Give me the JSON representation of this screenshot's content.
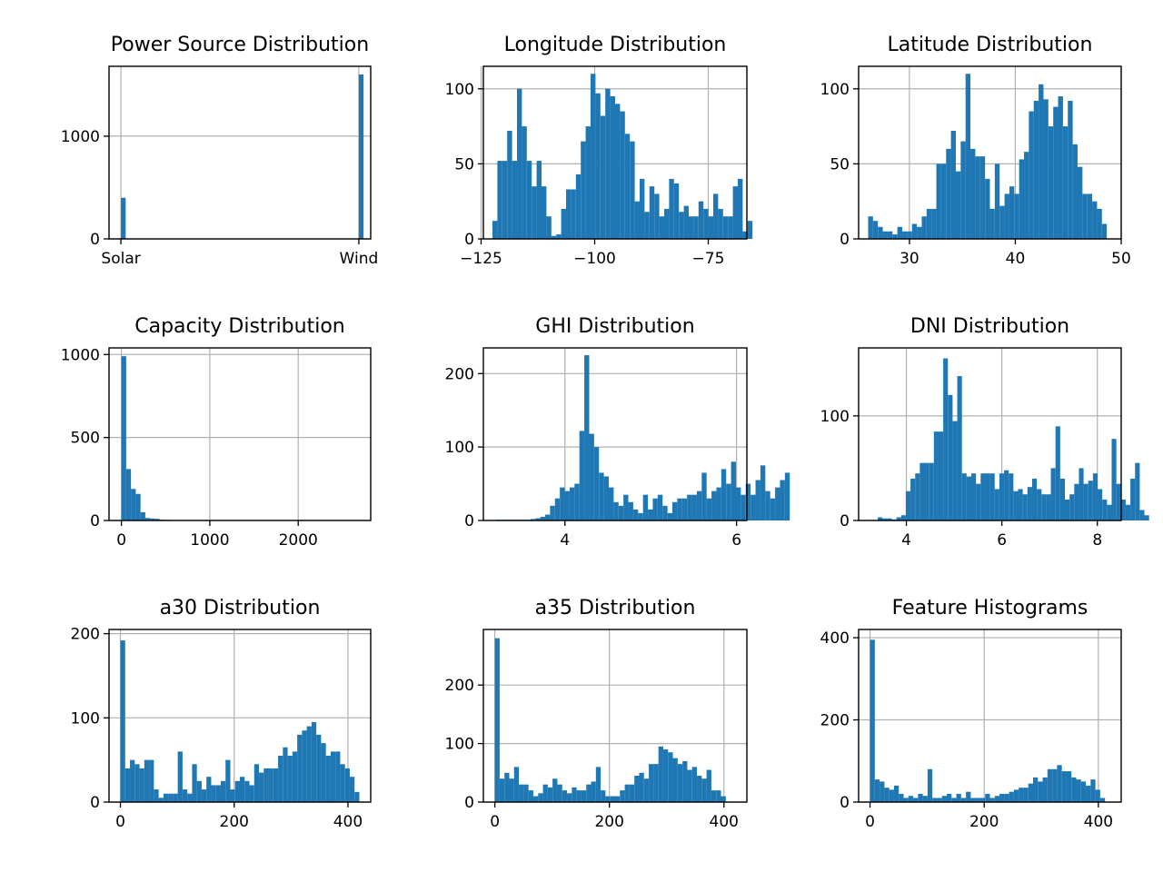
{
  "chart_data": [
    {
      "type": "bar",
      "title": "Power Source Distribution",
      "categories": [
        "Solar",
        "Wind"
      ],
      "values": [
        400,
        1600
      ],
      "xlim": [
        -0.05,
        1.05
      ],
      "ylim": [
        0,
        1680
      ],
      "xticks": [],
      "yticks": [
        0,
        1000
      ],
      "category_ticks": [
        {
          "value": 0,
          "label": "Solar"
        },
        {
          "value": 1,
          "label": "Wind"
        }
      ],
      "bin_width": 0.02,
      "color": "#1f77b4",
      "grid": true
    },
    {
      "type": "bar",
      "title": "Longitude Distribution",
      "bin_start": -122.5,
      "bin_width": 1.08,
      "values": [
        12,
        52,
        52,
        72,
        52,
        100,
        75,
        52,
        35,
        52,
        35,
        15,
        2,
        3,
        20,
        33,
        33,
        43,
        65,
        75,
        110,
        97,
        82,
        100,
        95,
        90,
        85,
        70,
        65,
        25,
        40,
        18,
        35,
        30,
        15,
        20,
        40,
        37,
        18,
        22,
        15,
        15,
        25,
        20,
        15,
        30,
        20,
        15,
        15,
        35,
        40,
        5,
        12
      ],
      "xlim": [
        -124.5,
        -66.5
      ],
      "ylim": [
        0,
        115
      ],
      "xticks": [
        -125,
        -100,
        -75
      ],
      "yticks": [
        0,
        50,
        100
      ],
      "color": "#1f77b4",
      "grid": true
    },
    {
      "type": "bar",
      "title": "Latitude Distribution",
      "bin_start": 26.1,
      "bin_width": 0.46,
      "values": [
        15,
        12,
        8,
        5,
        5,
        3,
        8,
        5,
        5,
        10,
        8,
        15,
        20,
        20,
        50,
        50,
        60,
        72,
        45,
        65,
        110,
        60,
        55,
        55,
        40,
        20,
        50,
        22,
        30,
        35,
        30,
        53,
        58,
        85,
        92,
        103,
        93,
        75,
        88,
        95,
        75,
        92,
        63,
        48,
        30,
        30,
        25,
        20,
        10
      ],
      "xlim": [
        25.2,
        50
      ],
      "ylim": [
        0,
        115
      ],
      "xticks": [
        30,
        40,
        50
      ],
      "yticks": [
        0,
        50,
        100
      ],
      "color": "#1f77b4",
      "grid": true
    },
    {
      "type": "bar",
      "title": "Capacity Distribution",
      "bin_start": 0,
      "bin_width": 54,
      "values": [
        990,
        310,
        190,
        160,
        50,
        15,
        12,
        10,
        5,
        4,
        3,
        2,
        2,
        2,
        1,
        1,
        1,
        1,
        1,
        1,
        1,
        0,
        0,
        1,
        0,
        0,
        0,
        0,
        0,
        1,
        0,
        0,
        0,
        0,
        0,
        0,
        0,
        0,
        0,
        0,
        0,
        0,
        0,
        0,
        0,
        0,
        0,
        0,
        0,
        1
      ],
      "xlim": [
        -140,
        2820
      ],
      "ylim": [
        0,
        1040
      ],
      "xticks": [
        0,
        1000,
        2000
      ],
      "yticks": [
        0,
        500,
        1000
      ],
      "color": "#1f77b4",
      "grid": true
    },
    {
      "type": "bar",
      "title": "GHI Distribution",
      "bin_start": 3.2,
      "bin_width": 0.057,
      "values": [
        1,
        1,
        1,
        1,
        1,
        1,
        1,
        2,
        3,
        5,
        8,
        20,
        30,
        45,
        40,
        45,
        50,
        122,
        225,
        118,
        100,
        65,
        60,
        45,
        25,
        20,
        35,
        25,
        15,
        10,
        35,
        15,
        30,
        35,
        20,
        10,
        25,
        30,
        30,
        35,
        35,
        40,
        65,
        30,
        40,
        45,
        70,
        50,
        80,
        45,
        35,
        50,
        35,
        55,
        75,
        40,
        30,
        45,
        55,
        65
      ],
      "xlim": [
        3.05,
        6.12
      ],
      "ylim": [
        0,
        235
      ],
      "xticks": [
        4,
        6
      ],
      "yticks": [
        0,
        100,
        200
      ],
      "color": "#1f77b4",
      "grid": true
    },
    {
      "type": "bar",
      "title": "DNI Distribution",
      "bin_start": 3.4,
      "bin_width": 0.098,
      "values": [
        3,
        2,
        2,
        1,
        3,
        5,
        28,
        40,
        45,
        55,
        55,
        55,
        85,
        85,
        155,
        120,
        95,
        138,
        45,
        42,
        45,
        35,
        45,
        45,
        45,
        30,
        45,
        48,
        45,
        28,
        30,
        25,
        32,
        40,
        30,
        25,
        25,
        50,
        90,
        40,
        20,
        25,
        35,
        50,
        35,
        38,
        45,
        30,
        20,
        15,
        78,
        35,
        20,
        15,
        40,
        55,
        10,
        5
      ],
      "xlim": [
        3.0,
        8.5
      ],
      "ylim": [
        0,
        165
      ],
      "xticks": [
        4,
        6,
        8
      ],
      "yticks": [
        0,
        100
      ],
      "color": "#1f77b4",
      "grid": true
    },
    {
      "type": "bar",
      "title": "a30 Distribution",
      "bin_start": 0,
      "bin_width": 8.4,
      "values": [
        192,
        40,
        50,
        45,
        40,
        50,
        50,
        15,
        5,
        10,
        10,
        10,
        60,
        15,
        10,
        45,
        25,
        15,
        30,
        20,
        20,
        25,
        50,
        15,
        25,
        30,
        25,
        20,
        45,
        35,
        40,
        40,
        40,
        55,
        65,
        55,
        60,
        80,
        85,
        90,
        95,
        80,
        70,
        55,
        60,
        60,
        45,
        40,
        30,
        12
      ],
      "xlim": [
        -20,
        440
      ],
      "ylim": [
        0,
        205
      ],
      "xticks": [
        0,
        200,
        400
      ],
      "yticks": [
        0,
        100,
        200
      ],
      "color": "#1f77b4",
      "grid": true
    },
    {
      "type": "bar",
      "title": "a35 Distribution",
      "bin_start": 0,
      "bin_width": 8.4,
      "values": [
        280,
        40,
        50,
        40,
        60,
        30,
        30,
        20,
        10,
        15,
        30,
        25,
        40,
        30,
        20,
        15,
        25,
        20,
        20,
        30,
        35,
        60,
        20,
        10,
        10,
        10,
        20,
        30,
        30,
        45,
        50,
        40,
        65,
        65,
        95,
        90,
        85,
        75,
        65,
        70,
        55,
        60,
        45,
        40,
        55,
        20,
        20,
        10
      ],
      "xlim": [
        -20,
        440
      ],
      "ylim": [
        0,
        295
      ],
      "xticks": [
        0,
        200,
        400
      ],
      "yticks": [
        0,
        100,
        200
      ],
      "color": "#1f77b4",
      "grid": true
    },
    {
      "type": "bar",
      "title": "Feature Histograms",
      "bin_start": 0,
      "bin_width": 8.4,
      "values": [
        395,
        55,
        50,
        35,
        30,
        40,
        20,
        10,
        15,
        10,
        20,
        15,
        80,
        10,
        10,
        15,
        20,
        10,
        20,
        10,
        25,
        10,
        10,
        10,
        20,
        10,
        15,
        20,
        20,
        25,
        30,
        35,
        35,
        45,
        60,
        50,
        60,
        80,
        80,
        90,
        75,
        75,
        60,
        55,
        50,
        40,
        55,
        30,
        10
      ],
      "xlim": [
        -20,
        440
      ],
      "ylim": [
        0,
        420
      ],
      "xticks": [
        0,
        200,
        400
      ],
      "yticks": [
        0,
        200,
        400
      ],
      "color": "#1f77b4",
      "grid": true
    }
  ]
}
